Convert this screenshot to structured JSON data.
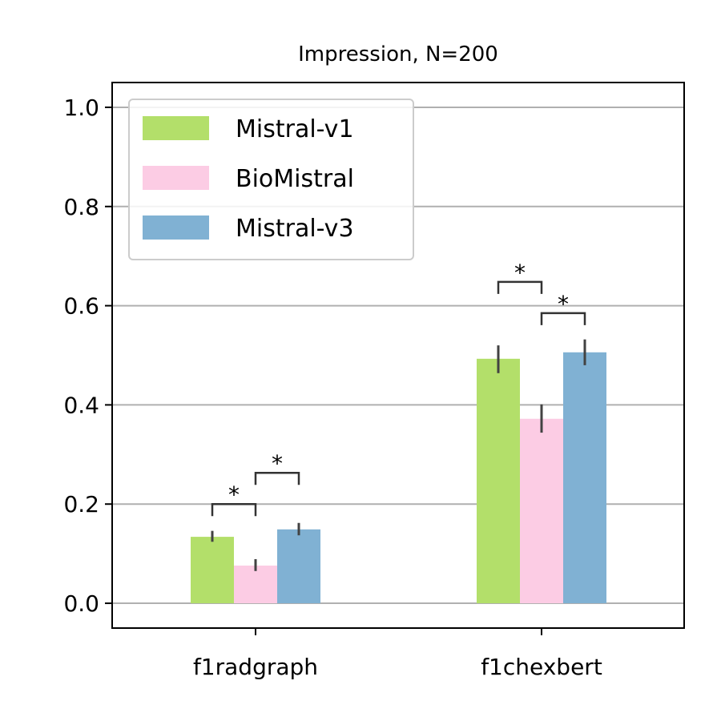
{
  "chart_data": {
    "type": "bar",
    "title": "Impression, N=200",
    "xlabel": "",
    "ylabel": "",
    "categories": [
      "f1radgraph",
      "f1chexbert"
    ],
    "ylim": [
      -0.05,
      1.05
    ],
    "yticks": [
      "0.0",
      "0.2",
      "0.4",
      "0.6",
      "0.8",
      "1.0"
    ],
    "grid": "y",
    "legend_position": "top-left",
    "series": [
      {
        "name": "Mistral-v1",
        "color": "#b3df6a",
        "values": [
          0.134,
          0.493
        ],
        "errors": [
          [
            0.124,
            0.146
          ],
          [
            0.464,
            0.52
          ]
        ]
      },
      {
        "name": "BioMistral",
        "color": "#fccce4",
        "values": [
          0.076,
          0.372
        ],
        "errors": [
          [
            0.065,
            0.089
          ],
          [
            0.344,
            0.401
          ]
        ]
      },
      {
        "name": "Mistral-v3",
        "color": "#80b1d3",
        "values": [
          0.149,
          0.506
        ],
        "errors": [
          [
            0.137,
            0.162
          ],
          [
            0.48,
            0.532
          ]
        ]
      }
    ],
    "significance": [
      {
        "category": 0,
        "from": 0,
        "to": 1,
        "y": 0.2,
        "label": "*"
      },
      {
        "category": 0,
        "from": 1,
        "to": 2,
        "y": 0.263,
        "label": "*"
      },
      {
        "category": 1,
        "from": 0,
        "to": 1,
        "y": 0.648,
        "label": "*"
      },
      {
        "category": 1,
        "from": 1,
        "to": 2,
        "y": 0.585,
        "label": "*"
      }
    ]
  }
}
